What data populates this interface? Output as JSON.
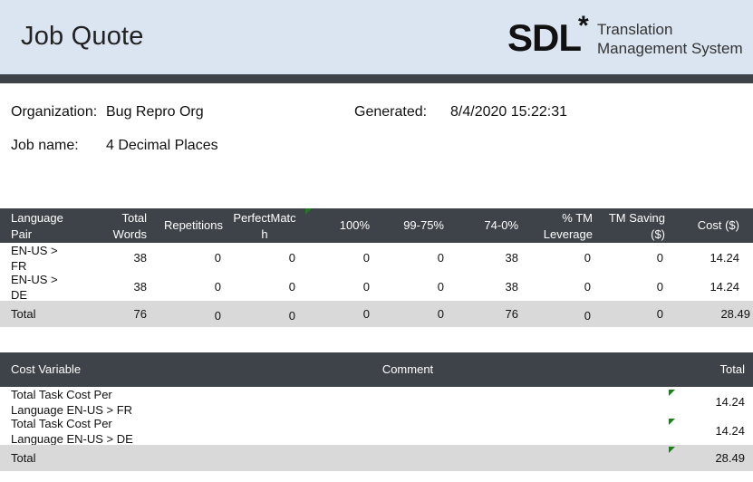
{
  "header": {
    "title": "Job Quote",
    "logo_text": "SDL",
    "logo_star": "*",
    "product_line1": "Translation",
    "product_line2": "Management System"
  },
  "meta": {
    "organization_label": "Organization:",
    "organization_value": "Bug Repro Org",
    "generated_label": "Generated:",
    "generated_value": "8/4/2020 15:22:31",
    "job_name_label": "Job name:",
    "job_name_value": "4 Decimal Places"
  },
  "quote_table": {
    "headers": [
      "Language Pair",
      "Total Words",
      "Repetitions",
      "PerfectMatch",
      "100%",
      "99-75%",
      "74-0%",
      "% TM Leverage",
      "TM Saving ($)",
      "Cost ($)"
    ],
    "rows": [
      [
        "EN-US > FR",
        "38",
        "0",
        "0",
        "0",
        "0",
        "38",
        "0",
        "0",
        "14.24"
      ],
      [
        "EN-US > DE",
        "38",
        "0",
        "0",
        "0",
        "0",
        "38",
        "0",
        "0",
        "14.24"
      ]
    ],
    "total": [
      "Total",
      "76",
      "0",
      "0",
      "0",
      "0",
      "76",
      "0",
      "0",
      "28.49"
    ]
  },
  "cost_table": {
    "headers": [
      "Cost Variable",
      "Comment",
      "Total"
    ],
    "rows": [
      [
        "Total Task Cost Per Language EN-US > FR",
        "",
        "14.24"
      ],
      [
        "Total Task Cost Per Language EN-US > DE",
        "",
        "14.24"
      ]
    ],
    "total": [
      "Total",
      "",
      "28.49"
    ]
  },
  "colors": {
    "header_bg": "#dbe5f1",
    "table_header_bg": "#3e4349",
    "total_row_bg": "#d9d9d9",
    "comment_marker": "#1a7f1a"
  }
}
